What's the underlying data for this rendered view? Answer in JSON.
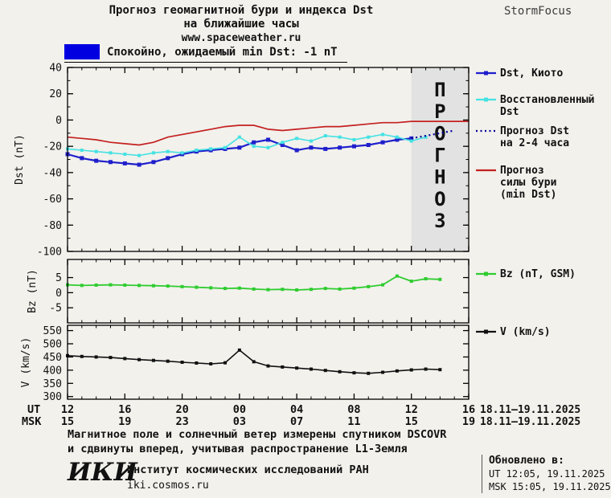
{
  "header": {
    "title_line1": "Прогноз геомагнитной бури и индекса Dst",
    "title_line2": "на ближайшие часы",
    "site": "www.spaceweather.ru",
    "brand": "StormFocus"
  },
  "status": {
    "label": "Спокойно, ожидаемый min Dst: -1 nT",
    "swatch_color": "#0000e0"
  },
  "chart_data": [
    {
      "id": "dst",
      "type": "line",
      "ylabel": "Dst (nT)",
      "ylim": [
        -100,
        40
      ],
      "yticks": [
        40,
        20,
        0,
        -20,
        -40,
        -60,
        -80,
        -100
      ],
      "yminor": 10,
      "xlim": [
        0,
        28
      ],
      "xtick_hours": [
        0,
        4,
        8,
        12,
        16,
        20,
        24,
        28
      ],
      "forecast_band": {
        "from": 24,
        "to": 28,
        "color": "#e2e2e2",
        "label": "ПРОГНОЗ",
        "label_color": "#bdbdbd"
      },
      "series": [
        {
          "key": "dst-kyoto",
          "name": "Dst, Киото",
          "legend_lines": [
            "Dst, Киото"
          ],
          "color": "#1f1fcc",
          "marker": "square",
          "x": [
            0,
            1,
            2,
            3,
            4,
            5,
            6,
            7,
            8,
            9,
            10,
            11,
            12,
            13,
            14,
            15,
            16,
            17,
            18,
            19,
            20,
            21,
            22,
            23,
            24
          ],
          "values": [
            -26,
            -29,
            -31,
            -32,
            -33,
            -34,
            -32,
            -29,
            -26,
            -24,
            -23,
            -22,
            -21,
            -17,
            -15,
            -19,
            -23,
            -21,
            -22,
            -21,
            -20,
            -19,
            -17,
            -15,
            -14
          ]
        },
        {
          "key": "dst-reconstructed",
          "name": "Восстановленный Dst",
          "legend_lines": [
            "Восстановленный",
            "Dst"
          ],
          "color": "#45e2e2",
          "marker": "square",
          "x": [
            0,
            1,
            2,
            3,
            4,
            5,
            6,
            7,
            8,
            9,
            10,
            11,
            12,
            13,
            14,
            15,
            16,
            17,
            18,
            19,
            20,
            21,
            22,
            23,
            24,
            25
          ],
          "values": [
            -22,
            -23,
            -24,
            -25,
            -26,
            -27,
            -25,
            -24,
            -25,
            -23,
            -22,
            -21,
            -13,
            -20,
            -21,
            -17,
            -14,
            -16,
            -12,
            -13,
            -15,
            -13,
            -11,
            -13,
            -16,
            -13
          ]
        },
        {
          "key": "dst-forecast-2-4h",
          "name": "Прогноз Dst на 2-4 часа",
          "legend_lines": [
            "Прогноз Dst",
            "на 2-4 часа"
          ],
          "color": "#000099",
          "dash": true,
          "legend_text_color": "#000099",
          "x": [
            24,
            25,
            26,
            27
          ],
          "values": [
            -14,
            -12,
            -10,
            -8
          ]
        },
        {
          "key": "storm-forecast-min-dst",
          "name": "Прогноз силы бури (min Dst)",
          "legend_lines": [
            "Прогноз",
            "силы бури",
            "(min Dst)"
          ],
          "color": "#c42020",
          "legend_text_color": "#000099",
          "x": [
            0,
            1,
            2,
            3,
            4,
            5,
            6,
            7,
            8,
            9,
            10,
            11,
            12,
            13,
            14,
            15,
            16,
            17,
            18,
            19,
            20,
            21,
            22,
            23,
            24,
            25,
            26,
            27,
            28
          ],
          "values": [
            -13,
            -14,
            -15,
            -17,
            -18,
            -19,
            -17,
            -13,
            -11,
            -9,
            -7,
            -5,
            -4,
            -4,
            -7,
            -8,
            -7,
            -6,
            -5,
            -5,
            -4,
            -3,
            -2,
            -2,
            -1,
            -1,
            -1,
            -1,
            -1
          ]
        }
      ]
    },
    {
      "id": "bz",
      "type": "line",
      "ylabel": "Bz (nT)",
      "ylim": [
        -10,
        11
      ],
      "yticks": [
        5,
        0,
        -5
      ],
      "series": [
        {
          "key": "bz-gsm",
          "name": "Bz (nT, GSM)",
          "legend_lines": [
            "Bz (nT, GSM)"
          ],
          "color": "#2fcc2f",
          "marker": "square",
          "x": [
            0,
            1,
            2,
            3,
            4,
            5,
            6,
            7,
            8,
            9,
            10,
            11,
            12,
            13,
            14,
            15,
            16,
            17,
            18,
            19,
            20,
            21,
            22,
            23,
            24,
            25,
            26
          ],
          "values": [
            2.6,
            2.4,
            2.5,
            2.6,
            2.5,
            2.4,
            2.3,
            2.2,
            2.0,
            1.8,
            1.6,
            1.4,
            1.5,
            1.2,
            1.0,
            1.1,
            0.9,
            1.1,
            1.4,
            1.2,
            1.5,
            2.0,
            2.6,
            5.5,
            3.8,
            4.6,
            4.4
          ]
        }
      ]
    },
    {
      "id": "v",
      "type": "line",
      "ylabel": "V (km/s)",
      "ylim": [
        290,
        570
      ],
      "yticks": [
        550,
        500,
        450,
        400,
        350,
        300
      ],
      "series": [
        {
          "key": "v-speed",
          "name": "V (km/s)",
          "legend_lines": [
            "V (km/s)"
          ],
          "color": "#111111",
          "marker": "square",
          "x": [
            0,
            1,
            2,
            3,
            4,
            5,
            6,
            7,
            8,
            9,
            10,
            11,
            12,
            13,
            14,
            15,
            16,
            17,
            18,
            19,
            20,
            21,
            22,
            23,
            24,
            25,
            26
          ],
          "values": [
            455,
            452,
            450,
            448,
            444,
            440,
            437,
            434,
            430,
            427,
            424,
            428,
            476,
            432,
            416,
            412,
            408,
            404,
            399,
            394,
            390,
            388,
            392,
            397,
            401,
            404,
            402
          ]
        }
      ]
    }
  ],
  "xaxis": {
    "ut_label": "UT",
    "msk_label": "MSK",
    "ut_ticks": [
      "12",
      "16",
      "20",
      "00",
      "04",
      "08",
      "12",
      "16"
    ],
    "msk_ticks": [
      "15",
      "19",
      "23",
      "03",
      "07",
      "11",
      "15",
      "19"
    ],
    "ut_date_range": "18.11–19.11.2025",
    "msk_date_range": "18.11–19.11.2025"
  },
  "notes": {
    "line1": "Магнитное поле и солнечный ветер измерены спутником DSCOVR",
    "line2": "и сдвинуты вперед, учитывая распространение L1-Земля"
  },
  "footer": {
    "logo": "ИКИ",
    "institute": "Институт космических исследований РАН",
    "site": "iki.cosmos.ru",
    "updated_label": "Обновлено в:",
    "updated_ut": "UT  12:05, 19.11.2025",
    "updated_msk": "MSK 15:05, 19.11.2025"
  }
}
